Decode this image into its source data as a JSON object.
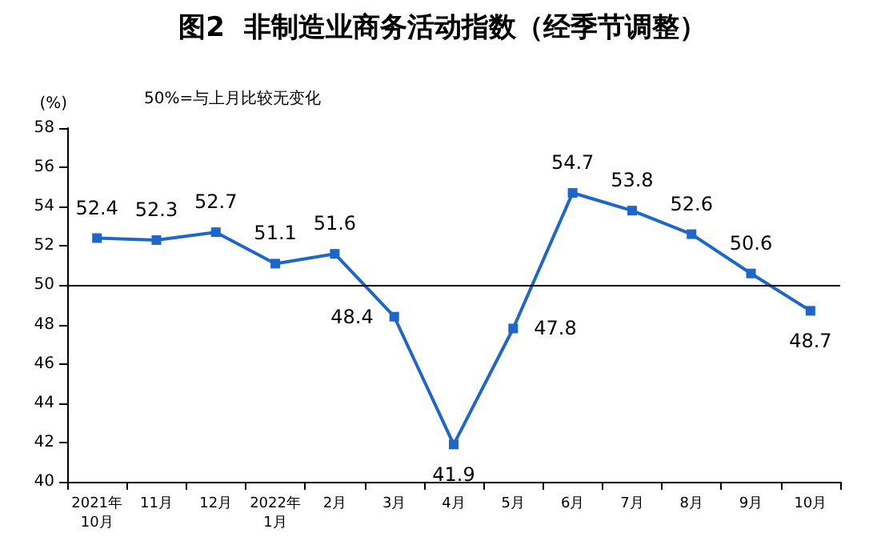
{
  "chart_data": {
    "type": "line",
    "title": "图2  非制造业商务活动指数（经季节调整）",
    "ylabel": "(%)",
    "annotations": [
      "50%=与上月比较无变化"
    ],
    "categories": [
      "2021年\n10月",
      "11月",
      "12月",
      "2022年\n1月",
      "2月",
      "3月",
      "4月",
      "5月",
      "6月",
      "7月",
      "8月",
      "9月",
      "10月"
    ],
    "series": [
      {
        "color": "#1f66c9",
        "values": [
          52.4,
          52.3,
          52.7,
          51.1,
          51.6,
          48.4,
          41.9,
          47.8,
          54.7,
          53.8,
          52.6,
          50.6,
          48.7
        ]
      }
    ],
    "ylim": [
      40,
      58
    ],
    "yticks": [
      40,
      42,
      44,
      46,
      48,
      50,
      52,
      54,
      56,
      58
    ],
    "ref_lines": [
      {
        "axis": "y",
        "value": 50,
        "color": "#000000"
      }
    ],
    "data_labels": true,
    "marker": "square",
    "grid": false
  }
}
